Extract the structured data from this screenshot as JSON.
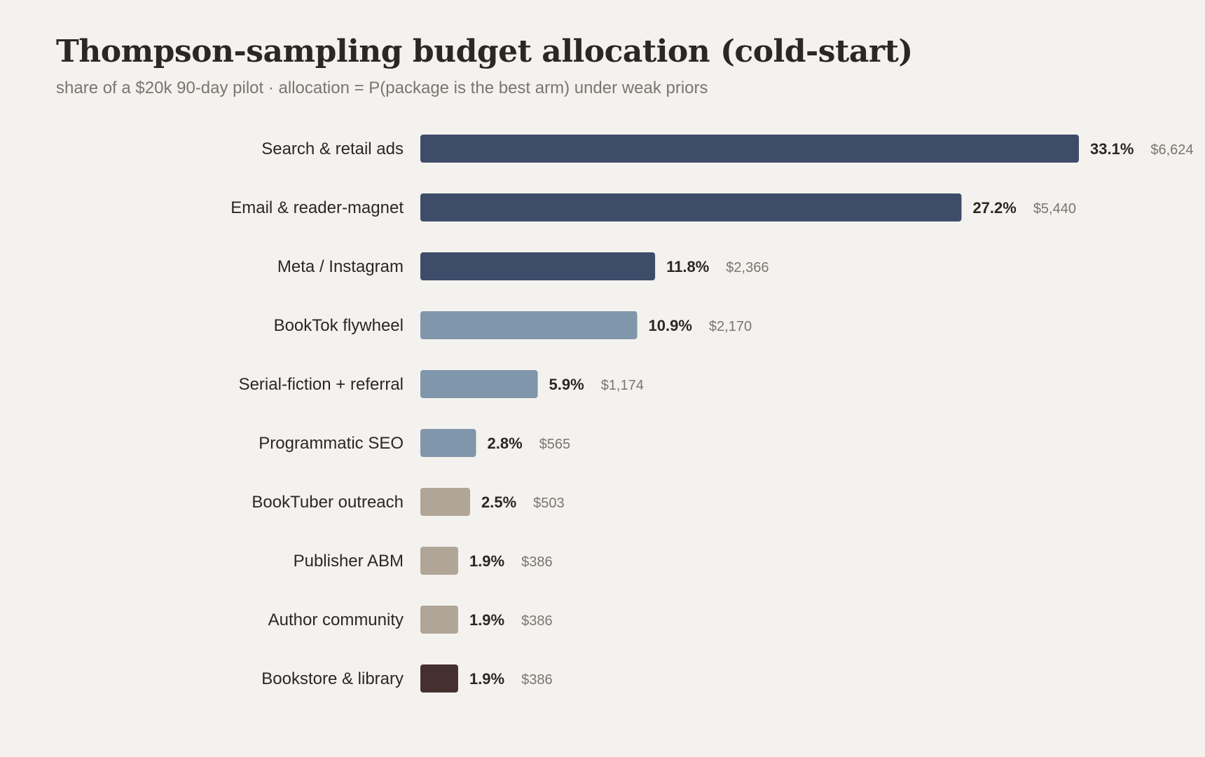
{
  "chart_data": {
    "type": "bar",
    "orientation": "horizontal",
    "title": "Thompson-sampling budget allocation (cold-start)",
    "subtitle": "share of a $20k 90-day pilot · allocation = P(package is the best arm) under weak priors",
    "xlabel": "",
    "ylabel": "",
    "xlim": [
      0,
      33.1
    ],
    "grid": false,
    "legend": "none",
    "categories": [
      "Search & retail ads",
      "Email & reader-magnet",
      "Meta / Instagram",
      "BookTok flywheel",
      "Serial-fiction + referral",
      "Programmatic SEO",
      "BookTuber outreach",
      "Publisher ABM",
      "Author community",
      "Bookstore & library"
    ],
    "values": [
      33.1,
      27.2,
      11.8,
      10.9,
      5.9,
      2.8,
      2.5,
      1.9,
      1.9,
      1.9
    ],
    "value_labels": [
      "33.1%",
      "27.2%",
      "11.8%",
      "10.9%",
      "5.9%",
      "2.8%",
      "2.5%",
      "1.9%",
      "1.9%",
      "1.9%"
    ],
    "amounts": [
      6624,
      5440,
      2366,
      2170,
      1174,
      565,
      503,
      386,
      386,
      386
    ],
    "amount_labels": [
      "$6,624",
      "$5,440",
      "$2,366",
      "$2,170",
      "$1,174",
      "$565",
      "$503",
      "$386",
      "$386",
      "$386"
    ],
    "colors": [
      "#3e4c69",
      "#3e4c69",
      "#3e4c69",
      "#8096aa",
      "#8096aa",
      "#8096aa",
      "#b1a597",
      "#b1a597",
      "#b1a597",
      "#45302f"
    ]
  }
}
